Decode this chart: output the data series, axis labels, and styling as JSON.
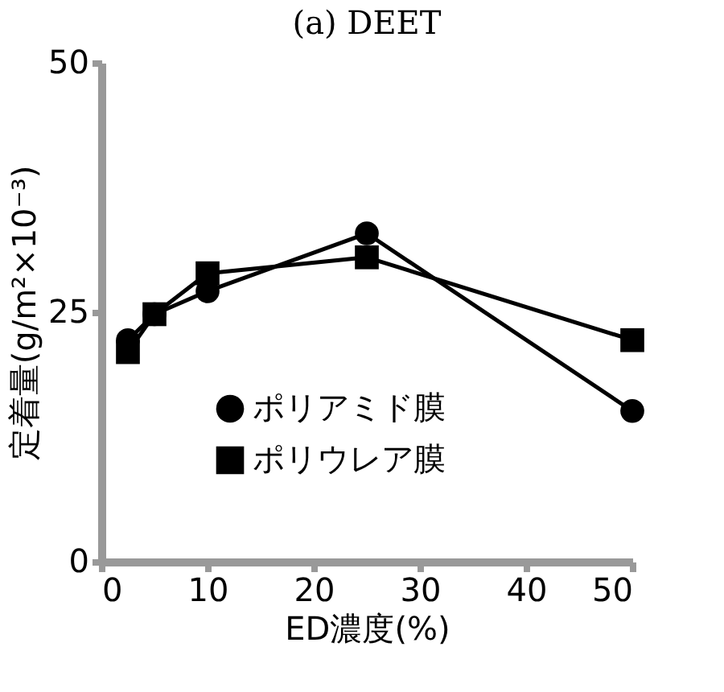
{
  "chart_data": {
    "type": "line",
    "title": "(a) DEET",
    "xlabel": "ED濃度(%)",
    "ylabel": "定着量(g/m²×10⁻³)",
    "x": [
      2.5,
      5,
      10,
      25,
      50
    ],
    "series": [
      {
        "name": "ポリアミド膜",
        "color": "#000000",
        "marker": "circle",
        "values": [
          22.2,
          24.8,
          27.1,
          32.9,
          15.1
        ]
      },
      {
        "name": "ポリウレア膜",
        "color": "#000000",
        "marker": "square",
        "values": [
          21.0,
          24.8,
          28.9,
          30.5,
          22.2
        ]
      }
    ],
    "xlim": [
      0,
      50
    ],
    "xticks": [
      0,
      10,
      20,
      30,
      40,
      50
    ],
    "ylim": [
      0,
      50
    ],
    "yticks": [
      0,
      25,
      50
    ],
    "grid": false,
    "legend": "bottom",
    "line_style": "solid"
  }
}
